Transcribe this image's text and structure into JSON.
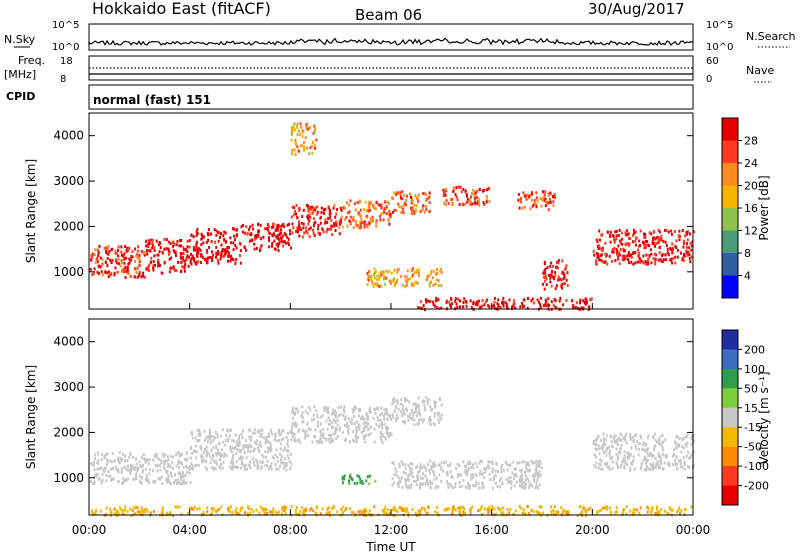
{
  "header": {
    "title": "Hokkaido East (fitACF)",
    "beam": "Beam 06",
    "date": "30/Aug/2017"
  },
  "noise_panel": {
    "left_label": "N.Sky",
    "right_label": "N.Search",
    "ticks_left": [
      "10^5",
      "10^0"
    ],
    "ticks_right": [
      "10^5",
      "10^0"
    ]
  },
  "freq_panel": {
    "left_label": "Freq.",
    "left_unit": "[MHz]",
    "right_label": "Nave",
    "ticks_left": [
      "18",
      "8"
    ],
    "ticks_right": [
      "60",
      "0"
    ]
  },
  "cpid_panel": {
    "label": "CPID",
    "value": "normal (fast) 151"
  },
  "chart_data": [
    {
      "type": "heatmap",
      "name": "power",
      "ylabel": "Slant Range [km]",
      "yticks": [
        "4000",
        "3000",
        "2000",
        "1000"
      ],
      "ytick_values": [
        4000,
        3000,
        2000,
        1000
      ],
      "ylim": [
        180,
        4500
      ],
      "xlim_hours": [
        0,
        24
      ],
      "colorbar": {
        "label": "Power [dB]",
        "tick_labels": [
          "28",
          "24",
          "20",
          "16",
          "12",
          "8",
          "4"
        ],
        "colors": [
          "#e80000",
          "#ff3a1e",
          "#ff8a1e",
          "#f7b400",
          "#8fc24e",
          "#4a9b7a",
          "#2f5f9e",
          "#0000ff"
        ]
      },
      "bands": [
        {
          "t": [
            0,
            2.2
          ],
          "r": [
            900,
            1600
          ],
          "level": 24
        },
        {
          "t": [
            2.2,
            4
          ],
          "r": [
            1000,
            1750
          ],
          "level": 26
        },
        {
          "t": [
            4,
            6
          ],
          "r": [
            1200,
            2000
          ],
          "level": 28
        },
        {
          "t": [
            6,
            8
          ],
          "r": [
            1500,
            2100
          ],
          "level": 28
        },
        {
          "t": [
            8,
            10
          ],
          "r": [
            1800,
            2500
          ],
          "level": 24
        },
        {
          "t": [
            10,
            12
          ],
          "r": [
            2000,
            2600
          ],
          "level": 20
        },
        {
          "t": [
            12,
            13.5
          ],
          "r": [
            2300,
            2800
          ],
          "level": 20
        },
        {
          "t": [
            11,
            14
          ],
          "r": [
            700,
            1100
          ],
          "level": 16
        },
        {
          "t": [
            14,
            16
          ],
          "r": [
            2500,
            2900
          ],
          "level": 22
        },
        {
          "t": [
            17,
            18.5
          ],
          "r": [
            2400,
            2800
          ],
          "level": 22
        },
        {
          "t": [
            18,
            19
          ],
          "r": [
            650,
            1300
          ],
          "level": 26
        },
        {
          "t": [
            20,
            24
          ],
          "r": [
            1200,
            1950
          ],
          "level": 26
        },
        {
          "t": [
            13,
            20
          ],
          "r": [
            200,
            450
          ],
          "level": 28
        },
        {
          "t": [
            8,
            9
          ],
          "r": [
            3600,
            4300
          ],
          "level": 16
        }
      ]
    },
    {
      "type": "heatmap",
      "name": "velocity",
      "ylabel": "Slant Range [km]",
      "yticks": [
        "4000",
        "3000",
        "2000",
        "1000"
      ],
      "ytick_values": [
        4000,
        3000,
        2000,
        1000
      ],
      "ylim": [
        180,
        4500
      ],
      "xlim_hours": [
        0,
        24
      ],
      "colorbar": {
        "label": "Velocity [m s⁻¹]",
        "tick_labels": [
          "200",
          "100",
          "50",
          "15",
          "-15",
          "-50",
          "-100",
          "-200"
        ],
        "colors": [
          "#1e2ea0",
          "#3a6fbf",
          "#2f9e4a",
          "#7fcf3a",
          "#c8c8c8",
          "#f5b800",
          "#ff8c00",
          "#ff3a1e",
          "#e80000"
        ]
      },
      "bands": [
        {
          "t": [
            0,
            4
          ],
          "r": [
            900,
            1600
          ],
          "level": 0
        },
        {
          "t": [
            4,
            8
          ],
          "r": [
            1200,
            2100
          ],
          "level": 0
        },
        {
          "t": [
            8,
            12
          ],
          "r": [
            1800,
            2600
          ],
          "level": 0
        },
        {
          "t": [
            12,
            14
          ],
          "r": [
            2200,
            2800
          ],
          "level": 0
        },
        {
          "t": [
            12,
            18
          ],
          "r": [
            800,
            1400
          ],
          "level": 0
        },
        {
          "t": [
            20,
            24
          ],
          "r": [
            1200,
            2000
          ],
          "level": 0
        },
        {
          "t": [
            10,
            11.5
          ],
          "r": [
            900,
            1100
          ],
          "level": 60
        },
        {
          "t": [
            0,
            24
          ],
          "r": [
            200,
            400
          ],
          "level": -40
        }
      ]
    }
  ],
  "x_axis": {
    "tick_labels": [
      "00:00",
      "04:00",
      "08:00",
      "12:00",
      "16:00",
      "20:00",
      "00:00"
    ],
    "label": "Time UT"
  }
}
